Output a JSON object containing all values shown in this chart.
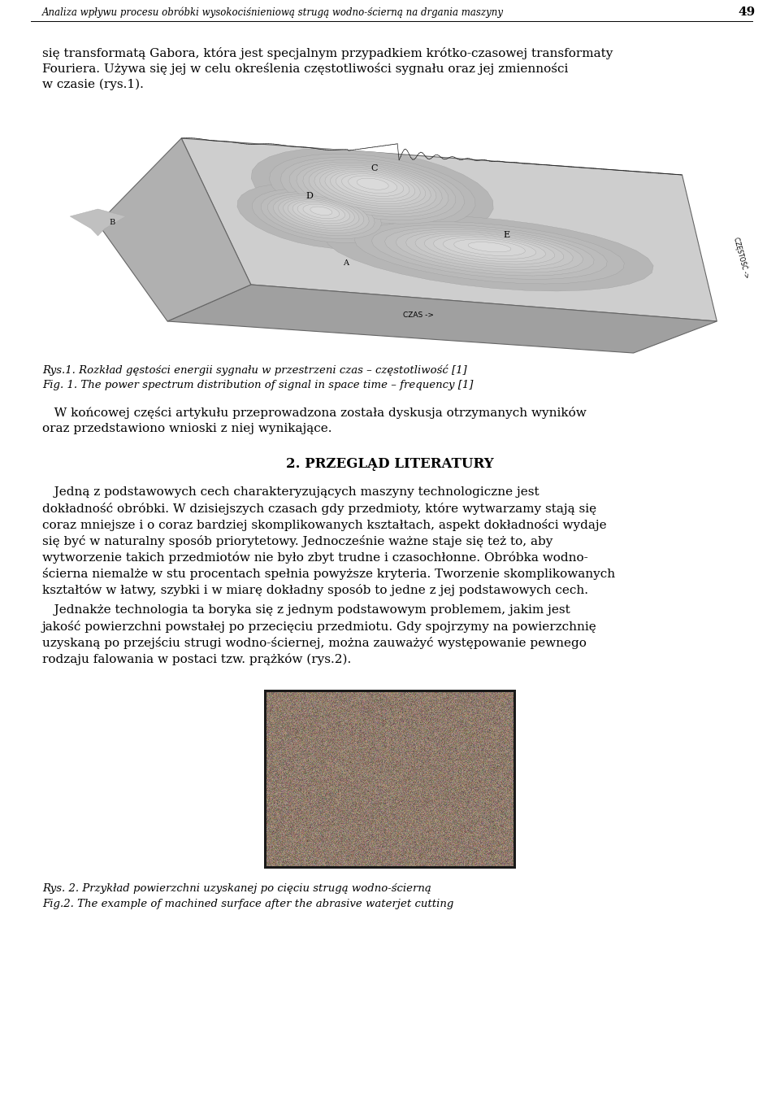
{
  "bg_color": "#ffffff",
  "header_text": "Analiza wpływu procesu obróbki wysokociśnieniową strugą wodno-ścierną na drgania maszyny",
  "header_number": "49",
  "para1_lines": [
    "się transformatą Gabora, która jest specjalnym przypadkiem krótko-czasowej transformaty",
    "Fouriera. Używa się jej w celu określenia częstotliwości sygnału oraz jej zmienności",
    "w czasie (rys.1)."
  ],
  "caption1_pl": "Rys.1. Rozkład gęstości energii sygnału w przestrzeni czas – częstotliwość [1]",
  "caption1_en": "Fig. 1. The power spectrum distribution of signal in space time – frequency [1]",
  "para2_lines": [
    "   W końcowej części artykułu przeprowadzona została dyskusja otrzymanych wyników",
    "oraz przedstawiono wnioski z niej wynikające."
  ],
  "section_header": "2. PRZEGLĄD LITERATURY",
  "para3_lines": [
    "   Jedną z podstawowych cech charakteryzujących maszyny technologiczne jest",
    "dokładność obróbki. W dzisiejszych czasach gdy przedmioty, które wytwarzamy stają się",
    "coraz mniejsze i o coraz bardziej skomplikowanych kształtach, aspekt dokładności wydaje",
    "się być w naturalny sposób priorytetowy. Jednocześnie ważne staje się też to, aby",
    "wytworzenie takich przedmiotów nie było zbyt trudne i czasochłonne. Obróbka wodno-",
    "ścierna niemalże w stu procentach spełnia powyższe kryteria. Tworzenie skomplikowanych",
    "kształtów w łatwy, szybki i w miarę dokładny sposób to jedne z jej podstawowych cech."
  ],
  "para4_lines": [
    "   Jednakże technologia ta boryka się z jednym podstawowym problemem, jakim jest",
    "jakość powierzchni powstałej po przecięciu przedmiotu. Gdy spojrzymy na powierzchnię",
    "uzyskaną po przejściu strugi wodno-ściernej, można zauważyć występowanie pewnego",
    "rodzaju falowania w postaci tzw. prążków (rys.2)."
  ],
  "caption2_pl": "Rys. 2. Przykład powierzchni uzyskanej po cięciu strugą wodno-ścierną",
  "caption2_en": "Fig.2. The example of machined surface after the abrasive waterjet cutting"
}
